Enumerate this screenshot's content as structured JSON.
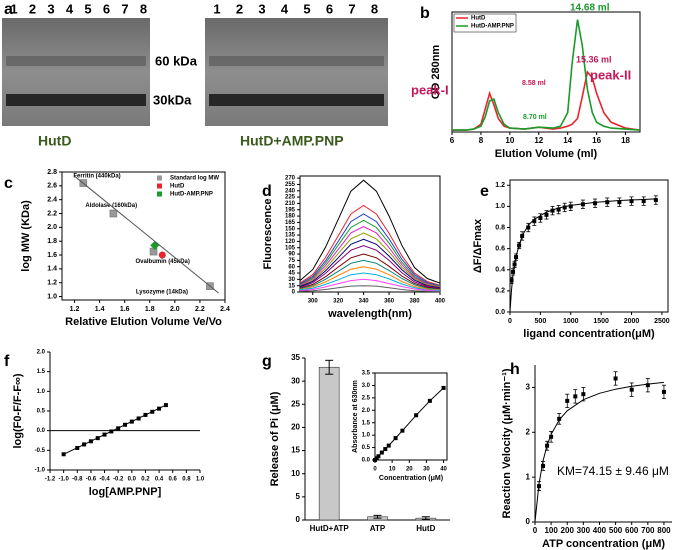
{
  "panel_labels": [
    "a",
    "b",
    "c",
    "d",
    "e",
    "f",
    "g",
    "h"
  ],
  "gel": {
    "lanes_left": [
      1,
      2,
      3,
      4,
      5,
      6,
      7,
      8
    ],
    "lanes_right": [
      1,
      2,
      3,
      4,
      5,
      6,
      7,
      8
    ],
    "markers": [
      "60 kDa",
      "30kDa"
    ],
    "captions": [
      "HutD",
      "HutD+AMP.PNP"
    ]
  },
  "chart_data": [
    {
      "type": "line",
      "xlabel": "Elution Volume (ml)",
      "ylabel": "OD 280nm",
      "xlim": [
        6,
        19
      ],
      "xticks": [
        6,
        8,
        10,
        12,
        14,
        16,
        18
      ],
      "ylim": [
        0,
        62
      ],
      "legend": "upper left",
      "x": [
        6,
        7,
        7.5,
        8,
        8.3,
        8.6,
        8.9,
        9.2,
        9.6,
        10,
        11,
        12,
        13,
        13.5,
        14,
        14.3,
        14.68,
        15,
        15.36,
        15.7,
        16,
        16.5,
        17,
        18,
        19
      ],
      "series": [
        {
          "name": "HutD",
          "color": "#e8242c",
          "values": [
            1,
            1,
            1.5,
            4,
            12,
            20,
            14,
            7,
            3,
            2,
            1.5,
            2.5,
            1.5,
            2,
            3,
            4,
            7,
            18,
            31,
            28,
            20,
            10,
            5,
            2,
            1
          ]
        },
        {
          "name": "HutD-AMP.PNP",
          "color": "#1a9a2a",
          "values": [
            1,
            1,
            1.5,
            3,
            8,
            16,
            17,
            10,
            4,
            2,
            1.5,
            2.5,
            2,
            3,
            10,
            35,
            58,
            45,
            22,
            10,
            5,
            3,
            2,
            1.5,
            1
          ]
        }
      ],
      "annotations": [
        {
          "text": "peak-I",
          "color": "#c2185b"
        },
        {
          "text": "8.58 ml",
          "color": "#c2185b"
        },
        {
          "text": "8.70 ml",
          "color": "#1a9a2a"
        },
        {
          "text": "14.68 ml",
          "color": "#1a9a2a"
        },
        {
          "text": "15.36 ml",
          "color": "#c2185b"
        },
        {
          "text": "peak-II",
          "color": "#c2185b"
        }
      ]
    },
    {
      "type": "scatter",
      "xlabel": "Relative Elution Volume Ve/Vo",
      "ylabel": "log MW (KDa)",
      "xlim": [
        1.1,
        2.4
      ],
      "xticks": [
        1.2,
        1.4,
        1.6,
        1.8,
        {
          "value": 2,
          "label": "2.0"
        },
        2.2,
        2.4
      ],
      "ylim": [
        0.95,
        2.8
      ],
      "yticks": [
        {
          "value": 1,
          "label": "1.0"
        },
        1.2,
        1.4,
        1.6,
        1.8,
        {
          "value": 2,
          "label": "2.0"
        },
        2.2,
        2.4,
        2.6,
        2.8
      ],
      "legend": "upper right",
      "series": [
        {
          "name": "Standard log MW",
          "color": "#999999",
          "marker": "square",
          "x": [
            1.27,
            1.51,
            1.83,
            2.28
          ],
          "values": [
            2.64,
            2.2,
            1.65,
            1.15
          ],
          "point_labels": [
            "Ferritin (440kDa)",
            "Aldolase (160kDa)",
            "Ovalbumin (45kDa)",
            "Lysozyme (14kDa)"
          ]
        },
        {
          "name": "HutD",
          "color": "#e8242c",
          "marker": "circle",
          "x": [
            1.9
          ],
          "values": [
            1.6
          ]
        },
        {
          "name": "HutD-AMP.PNP",
          "color": "#1a9a2a",
          "marker": "diamond",
          "x": [
            1.84
          ],
          "values": [
            1.74
          ]
        },
        {
          "color": "#555555",
          "marker": "none",
          "line": true,
          "x": [
            1.2,
            2.35
          ],
          "values": [
            2.74,
            1.05
          ]
        }
      ]
    },
    {
      "type": "line",
      "xlabel": "wavelength(nm)",
      "ylabel": "Fluorescence",
      "xlim": [
        290,
        400
      ],
      "xticks": [
        300,
        320,
        340,
        360,
        380,
        400
      ],
      "ylim": [
        0,
        275
      ],
      "yticks": [
        0,
        15,
        30,
        45,
        60,
        75,
        90,
        105,
        120,
        135,
        150,
        165,
        180,
        195,
        210,
        225,
        240,
        255,
        270
      ],
      "x": [
        290,
        300,
        310,
        320,
        330,
        340,
        350,
        360,
        370,
        380,
        390,
        400
      ],
      "series": [
        {
          "color": "#000000",
          "values": [
            27,
            53,
            106,
            172,
            239,
            265,
            239,
            180,
            111,
            58,
            32,
            21
          ]
        },
        {
          "color": "#e8242c",
          "values": [
            21,
            41,
            82,
            133,
            185,
            205,
            185,
            139,
            86,
            45,
            25,
            16
          ]
        },
        {
          "color": "#1f3fd0",
          "values": [
            19,
            37,
            74,
            120,
            167,
            185,
            167,
            126,
            78,
            41,
            22,
            15
          ]
        },
        {
          "color": "#1a9a2a",
          "values": [
            17,
            34,
            68,
            111,
            153,
            170,
            153,
            116,
            71,
            37,
            20,
            14
          ]
        },
        {
          "color": "#e020c0",
          "values": [
            16,
            31,
            62,
            101,
            140,
            155,
            140,
            105,
            65,
            34,
            19,
            12
          ]
        },
        {
          "color": "#9a9a00",
          "values": [
            14,
            28,
            56,
            91,
            126,
            140,
            126,
            95,
            59,
            31,
            17,
            11
          ]
        },
        {
          "color": "#000080",
          "values": [
            13,
            25,
            50,
            81,
            113,
            125,
            113,
            85,
            53,
            28,
            15,
            10
          ]
        },
        {
          "color": "#800080",
          "values": [
            11,
            22,
            44,
            72,
            99,
            110,
            99,
            75,
            46,
            24,
            13,
            9
          ]
        },
        {
          "color": "#800000",
          "values": [
            9,
            18,
            36,
            59,
            81,
            90,
            81,
            61,
            38,
            20,
            11,
            7
          ]
        },
        {
          "color": "#008080",
          "values": [
            8,
            15,
            30,
            49,
            68,
            75,
            68,
            51,
            32,
            17,
            9,
            6
          ]
        },
        {
          "color": "#ff8000",
          "values": [
            6,
            12,
            24,
            39,
            54,
            60,
            54,
            41,
            25,
            13,
            7,
            5
          ]
        },
        {
          "color": "#00b0e0",
          "values": [
            5,
            9,
            18,
            29,
            41,
            45,
            41,
            31,
            19,
            10,
            5,
            4
          ]
        },
        {
          "color": "#ff40ff",
          "values": [
            3,
            6,
            12,
            20,
            27,
            30,
            27,
            20,
            13,
            7,
            4,
            2
          ]
        },
        {
          "color": "#606060",
          "values": [
            2,
            3,
            6,
            10,
            14,
            15,
            14,
            10,
            6,
            3,
            2,
            1
          ]
        }
      ]
    },
    {
      "type": "scatter",
      "xlabel": "ligand concentration(μM)",
      "ylabel": "ΔF/ΔFmax",
      "xlim": [
        0,
        2600
      ],
      "xticks": [
        0,
        500,
        1000,
        1500,
        2000,
        2500
      ],
      "ylim": [
        0,
        1.25
      ],
      "yticks": [
        {
          "value": 0,
          "label": "0.0"
        },
        0.2,
        0.4,
        0.6,
        0.8,
        {
          "value": 1,
          "label": "1.0"
        },
        1.2
      ],
      "series": [
        {
          "color": "#000000",
          "marker": "square",
          "x": [
            25,
            50,
            75,
            100,
            150,
            200,
            300,
            400,
            500,
            600,
            700,
            800,
            900,
            1000,
            1200,
            1400,
            1600,
            1800,
            2000,
            2200,
            2400
          ],
          "values": [
            0.3,
            0.38,
            0.45,
            0.52,
            0.63,
            0.72,
            0.8,
            0.86,
            0.89,
            0.92,
            0.96,
            0.97,
            0.99,
            1,
            1.02,
            1.03,
            1.04,
            1.04,
            1.05,
            1.05,
            1.06
          ],
          "errors": [
            0.03,
            0.03,
            0.03,
            0.03,
            0.03,
            0.04,
            0.04,
            0.04,
            0.04,
            0.04,
            0.04,
            0.04,
            0.04,
            0.04,
            0.04,
            0.04,
            0.04,
            0.04,
            0.04,
            0.04,
            0.04
          ]
        },
        {
          "color": "#000000",
          "marker": "none",
          "line": true,
          "x": [
            0,
            25,
            50,
            100,
            200,
            300,
            400,
            600,
            800,
            1000,
            1400,
            1800,
            2400
          ],
          "values": [
            0,
            0.207,
            0.35,
            0.533,
            0.723,
            0.82,
            0.878,
            0.946,
            0.985,
            1.009,
            1.038,
            1.056,
            1.071
          ]
        }
      ]
    },
    {
      "type": "scatter",
      "xlabel": "log[AMP.PNP]",
      "ylabel": "log(F0-F/F-F∞)",
      "xlim": [
        -1.2,
        1
      ],
      "xticks": [
        -1.2,
        {
          "value": -1,
          "label": "-1.0"
        },
        -0.8,
        -0.6,
        -0.4,
        -0.2,
        {
          "value": 0,
          "label": "0.0"
        },
        0.2,
        0.4,
        0.6,
        0.8,
        {
          "value": 1,
          "label": "1.0"
        }
      ],
      "ylim": [
        -1,
        2
      ],
      "yticks": [
        {
          "value": -1,
          "label": "-1.0"
        },
        -0.5,
        {
          "value": 0,
          "label": "0.0"
        },
        0.5,
        {
          "value": 1,
          "label": "1.0"
        },
        1.5,
        {
          "value": 2,
          "label": "2.0"
        }
      ],
      "reference_line": 0,
      "series": [
        {
          "color": "#000000",
          "marker": "square",
          "x": [
            -1,
            -0.8,
            -0.7,
            -0.6,
            -0.5,
            -0.4,
            -0.3,
            -0.2,
            -0.1,
            0,
            0.1,
            0.2,
            0.3,
            0.4,
            0.5
          ],
          "values": [
            -0.6,
            -0.44,
            -0.35,
            -0.27,
            -0.19,
            -0.1,
            -0.02,
            0.06,
            0.15,
            0.23,
            0.31,
            0.4,
            0.48,
            0.56,
            0.65
          ]
        },
        {
          "color": "#000000",
          "marker": "none",
          "line": true,
          "x": [
            -1,
            0.5
          ],
          "values": [
            -0.6,
            0.65
          ]
        }
      ]
    },
    {
      "type": "bar",
      "ylabel": "Release of Pi (μM)",
      "ylim": [
        0,
        35
      ],
      "yticks": [
        0,
        5,
        10,
        15,
        20,
        25,
        30,
        35
      ],
      "color": "#c8c8c8",
      "categories": [
        "HutD+ATP",
        "ATP",
        "HutD"
      ],
      "values": [
        33,
        0.7,
        0.4
      ],
      "errors": [
        1.5,
        0.3,
        0.3
      ]
    },
    {
      "type": "scatter",
      "xlabel": "Concentration (μM)",
      "ylabel": "Absorbance at 630nm",
      "xlim": [
        0,
        42
      ],
      "xticks": [
        0,
        10,
        20,
        30,
        40
      ],
      "ylim": [
        0,
        3.5
      ],
      "yticks": [
        {
          "value": 0,
          "label": "0.0"
        },
        0.5,
        {
          "value": 1,
          "label": "1.0"
        },
        1.5,
        {
          "value": 2,
          "label": "2.0"
        },
        2.5,
        {
          "value": 3,
          "label": "3.0"
        },
        3.5
      ],
      "series": [
        {
          "color": "#000000",
          "marker": "square",
          "line": true,
          "x": [
            0,
            1,
            2,
            4,
            6,
            8,
            12,
            16,
            24,
            32,
            40
          ],
          "values": [
            0,
            0.07,
            0.15,
            0.3,
            0.44,
            0.58,
            0.88,
            1.18,
            1.8,
            2.38,
            2.9
          ]
        }
      ]
    },
    {
      "type": "scatter",
      "xlabel": "ATP concentration (μM)",
      "ylabel": "Reaction Velocity (μM·min⁻¹)",
      "xlim": [
        0,
        850
      ],
      "xticks": [
        0,
        100,
        200,
        300,
        400,
        500,
        600,
        700,
        800
      ],
      "ylim": [
        0,
        3.5
      ],
      "yticks": [
        0,
        1,
        2,
        3
      ],
      "annotation": "KM=74.15 ± 9.46 μM",
      "series": [
        {
          "color": "#000000",
          "marker": "square",
          "x": [
            25,
            50,
            75,
            100,
            150,
            200,
            250,
            300,
            500,
            600,
            700,
            800
          ],
          "values": [
            0.8,
            1.25,
            1.7,
            1.9,
            2.3,
            2.7,
            2.8,
            2.85,
            3.2,
            2.95,
            3.05,
            2.9
          ],
          "errors": [
            0.1,
            0.1,
            0.1,
            0.12,
            0.12,
            0.15,
            0.15,
            0.15,
            0.15,
            0.15,
            0.15,
            0.15
          ]
        },
        {
          "color": "#000000",
          "marker": "none",
          "line": true,
          "x": [
            0,
            25,
            50,
            75,
            100,
            150,
            200,
            300,
            400,
            500,
            600,
            700,
            800
          ],
          "values": [
            0,
            0.857,
            1.369,
            1.71,
            1.953,
            2.276,
            2.48,
            2.726,
            2.87,
            2.961,
            3.026,
            3.074,
            3.112
          ]
        }
      ]
    }
  ]
}
